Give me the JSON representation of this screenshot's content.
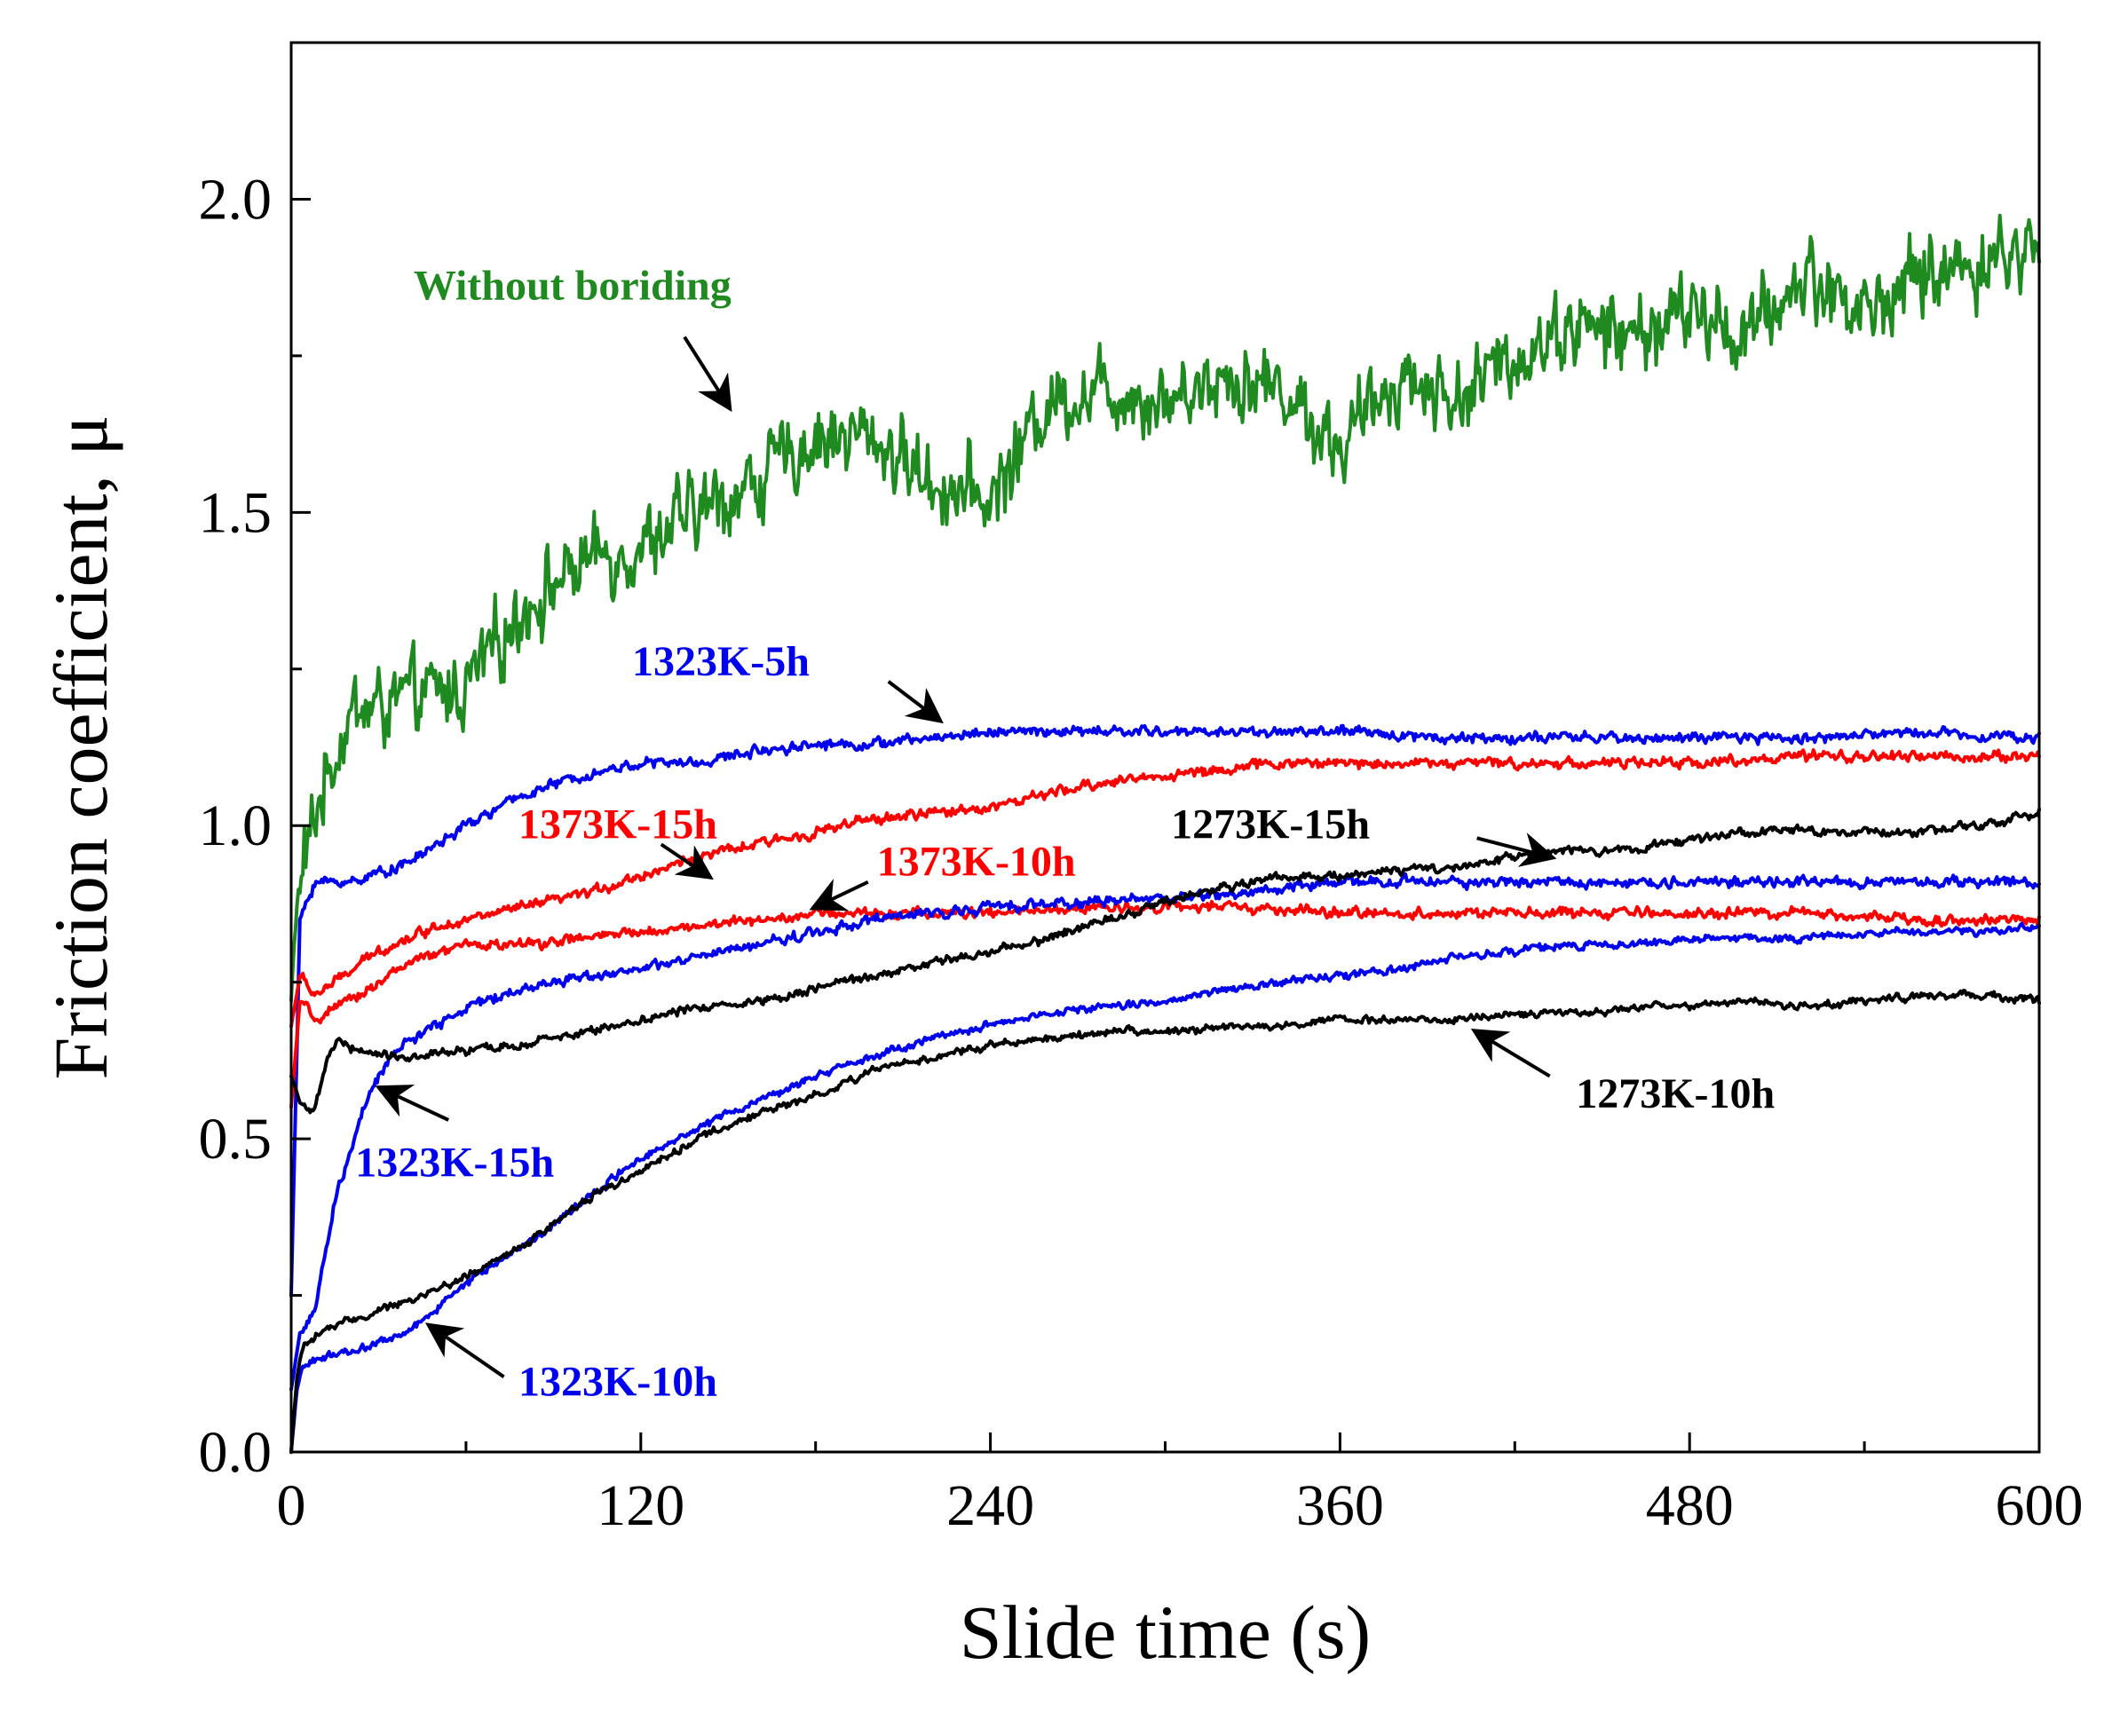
{
  "chart_data": {
    "type": "line",
    "title": "",
    "xlabel": "Slide time (s)",
    "ylabel": "Friction coefficient, μ",
    "xlim": [
      0,
      600
    ],
    "ylim": [
      0,
      2.25
    ],
    "x_ticks": [
      0,
      120,
      240,
      360,
      480,
      600
    ],
    "x_tick_labels": [
      "0",
      "120",
      "240",
      "360",
      "480",
      "600"
    ],
    "y_ticks": [
      0,
      0.5,
      1.0,
      1.5,
      2.0
    ],
    "y_tick_labels": [
      "0.0",
      "0.5",
      "1.0",
      "1.5",
      "2.0"
    ],
    "grid": false,
    "series": [
      {
        "name": "Without boriding",
        "color": "#1f8a1f",
        "noise": 0.09,
        "points": [
          [
            0,
            0.72
          ],
          [
            2,
            0.88
          ],
          [
            5,
            0.95
          ],
          [
            10,
            1.05
          ],
          [
            20,
            1.18
          ],
          [
            40,
            1.2
          ],
          [
            60,
            1.22
          ],
          [
            80,
            1.35
          ],
          [
            100,
            1.42
          ],
          [
            120,
            1.45
          ],
          [
            140,
            1.5
          ],
          [
            160,
            1.55
          ],
          [
            180,
            1.62
          ],
          [
            200,
            1.62
          ],
          [
            220,
            1.55
          ],
          [
            240,
            1.52
          ],
          [
            260,
            1.68
          ],
          [
            280,
            1.7
          ],
          [
            300,
            1.68
          ],
          [
            320,
            1.72
          ],
          [
            340,
            1.7
          ],
          [
            360,
            1.6
          ],
          [
            380,
            1.72
          ],
          [
            400,
            1.68
          ],
          [
            420,
            1.75
          ],
          [
            440,
            1.8
          ],
          [
            460,
            1.78
          ],
          [
            480,
            1.82
          ],
          [
            500,
            1.78
          ],
          [
            520,
            1.88
          ],
          [
            540,
            1.82
          ],
          [
            560,
            1.88
          ],
          [
            580,
            1.9
          ],
          [
            600,
            1.92
          ]
        ],
        "label_text": "Without boriding",
        "label_at": [
          42,
          1.84
        ],
        "label_anchor": "start",
        "arrow_from": [
          135,
          1.78
        ],
        "arrow_to": [
          150,
          1.67
        ]
      },
      {
        "name": "1323K-5h",
        "color": "#0000ee",
        "noise": 0.012,
        "points": [
          [
            0,
            0.25
          ],
          [
            3,
            0.85
          ],
          [
            8,
            0.91
          ],
          [
            20,
            0.91
          ],
          [
            40,
            0.94
          ],
          [
            60,
            1.0
          ],
          [
            80,
            1.05
          ],
          [
            100,
            1.08
          ],
          [
            120,
            1.1
          ],
          [
            140,
            1.1
          ],
          [
            160,
            1.12
          ],
          [
            180,
            1.13
          ],
          [
            200,
            1.13
          ],
          [
            220,
            1.14
          ],
          [
            240,
            1.15
          ],
          [
            280,
            1.15
          ],
          [
            320,
            1.15
          ],
          [
            360,
            1.15
          ],
          [
            400,
            1.14
          ],
          [
            440,
            1.14
          ],
          [
            480,
            1.14
          ],
          [
            520,
            1.14
          ],
          [
            560,
            1.15
          ],
          [
            600,
            1.14
          ]
        ],
        "label_text": "1323K-5h",
        "label_at": [
          117,
          1.24
        ],
        "label_anchor": "start",
        "arrow_from": [
          205,
          1.23
        ],
        "arrow_to": [
          222,
          1.17
        ]
      },
      {
        "name": "1373K-15h",
        "color": "#ff0000",
        "noise": 0.012,
        "points": [
          [
            0,
            0.68
          ],
          [
            3,
            0.76
          ],
          [
            8,
            0.73
          ],
          [
            15,
            0.75
          ],
          [
            30,
            0.8
          ],
          [
            50,
            0.84
          ],
          [
            60,
            0.85
          ],
          [
            80,
            0.87
          ],
          [
            100,
            0.89
          ],
          [
            120,
            0.92
          ],
          [
            140,
            0.95
          ],
          [
            160,
            0.97
          ],
          [
            180,
            0.99
          ],
          [
            200,
            1.01
          ],
          [
            220,
            1.02
          ],
          [
            240,
            1.03
          ],
          [
            260,
            1.05
          ],
          [
            280,
            1.07
          ],
          [
            300,
            1.08
          ],
          [
            320,
            1.09
          ],
          [
            340,
            1.1
          ],
          [
            360,
            1.1
          ],
          [
            400,
            1.1
          ],
          [
            440,
            1.1
          ],
          [
            480,
            1.1
          ],
          [
            520,
            1.11
          ],
          [
            560,
            1.11
          ],
          [
            600,
            1.11
          ]
        ],
        "label_text": "1373K-15h",
        "label_at": [
          78,
          0.98
        ],
        "label_anchor": "start",
        "arrow_from": [
          127,
          0.97
        ],
        "arrow_to": [
          143,
          0.92
        ]
      },
      {
        "name": "1373K-10h",
        "color": "#ff0000",
        "noise": 0.012,
        "points": [
          [
            0,
            0.55
          ],
          [
            3,
            0.72
          ],
          [
            8,
            0.69
          ],
          [
            20,
            0.72
          ],
          [
            40,
            0.78
          ],
          [
            60,
            0.81
          ],
          [
            80,
            0.81
          ],
          [
            100,
            0.82
          ],
          [
            120,
            0.83
          ],
          [
            140,
            0.84
          ],
          [
            160,
            0.85
          ],
          [
            180,
            0.86
          ],
          [
            200,
            0.86
          ],
          [
            240,
            0.86
          ],
          [
            280,
            0.87
          ],
          [
            320,
            0.87
          ],
          [
            360,
            0.86
          ],
          [
            400,
            0.86
          ],
          [
            440,
            0.86
          ],
          [
            480,
            0.86
          ],
          [
            520,
            0.86
          ],
          [
            560,
            0.85
          ],
          [
            600,
            0.85
          ]
        ],
        "label_text": "1373K-10h",
        "label_at": [
          201,
          0.92
        ],
        "label_anchor": "start",
        "arrow_from": [
          198,
          0.91
        ],
        "arrow_to": [
          180,
          0.87
        ]
      },
      {
        "name": "1323K-15h",
        "color": "#0000ee",
        "noise": 0.012,
        "points": [
          [
            0,
            0.1
          ],
          [
            3,
            0.19
          ],
          [
            8,
            0.22
          ],
          [
            15,
            0.4
          ],
          [
            25,
            0.55
          ],
          [
            35,
            0.64
          ],
          [
            60,
            0.71
          ],
          [
            80,
            0.74
          ],
          [
            100,
            0.76
          ],
          [
            120,
            0.77
          ],
          [
            140,
            0.79
          ],
          [
            160,
            0.81
          ],
          [
            180,
            0.83
          ],
          [
            200,
            0.85
          ],
          [
            220,
            0.86
          ],
          [
            240,
            0.87
          ],
          [
            280,
            0.88
          ],
          [
            320,
            0.89
          ],
          [
            360,
            0.91
          ],
          [
            400,
            0.91
          ],
          [
            440,
            0.91
          ],
          [
            480,
            0.91
          ],
          [
            520,
            0.91
          ],
          [
            560,
            0.91
          ],
          [
            600,
            0.91
          ]
        ],
        "label_text": "1323K-15h",
        "label_at": [
          22,
          0.44
        ],
        "label_anchor": "start",
        "arrow_from": [
          54,
          0.53
        ],
        "arrow_to": [
          31,
          0.58
        ]
      },
      {
        "name": "1273K-15h",
        "color": "#000000",
        "noise": 0.01,
        "points": [
          [
            0,
            0.6
          ],
          [
            3,
            0.56
          ],
          [
            8,
            0.54
          ],
          [
            12,
            0.62
          ],
          [
            16,
            0.66
          ],
          [
            22,
            0.64
          ],
          [
            40,
            0.63
          ],
          [
            60,
            0.64
          ],
          [
            80,
            0.65
          ],
          [
            100,
            0.67
          ],
          [
            120,
            0.69
          ],
          [
            140,
            0.71
          ],
          [
            160,
            0.72
          ],
          [
            180,
            0.74
          ],
          [
            200,
            0.76
          ],
          [
            220,
            0.78
          ],
          [
            240,
            0.8
          ],
          [
            260,
            0.82
          ],
          [
            280,
            0.85
          ],
          [
            300,
            0.88
          ],
          [
            320,
            0.9
          ],
          [
            340,
            0.92
          ],
          [
            360,
            0.92
          ],
          [
            380,
            0.93
          ],
          [
            400,
            0.93
          ],
          [
            420,
            0.95
          ],
          [
            440,
            0.96
          ],
          [
            460,
            0.96
          ],
          [
            480,
            0.98
          ],
          [
            500,
            0.99
          ],
          [
            520,
            0.99
          ],
          [
            540,
            0.99
          ],
          [
            560,
            0.99
          ],
          [
            580,
            1.0
          ],
          [
            600,
            1.02
          ]
        ],
        "label_text": "1273K-15h",
        "label_at": [
          302,
          0.98
        ],
        "label_anchor": "start",
        "arrow_from": [
          407,
          0.98
        ],
        "arrow_to": [
          432,
          0.95
        ]
      },
      {
        "name": "1323K-10h",
        "color": "#0000ee",
        "noise": 0.009,
        "points": [
          [
            0,
            0.0
          ],
          [
            2,
            0.1
          ],
          [
            4,
            0.14
          ],
          [
            10,
            0.15
          ],
          [
            20,
            0.16
          ],
          [
            40,
            0.19
          ],
          [
            60,
            0.27
          ],
          [
            80,
            0.33
          ],
          [
            100,
            0.4
          ],
          [
            120,
            0.47
          ],
          [
            140,
            0.52
          ],
          [
            160,
            0.56
          ],
          [
            180,
            0.6
          ],
          [
            200,
            0.63
          ],
          [
            220,
            0.66
          ],
          [
            240,
            0.68
          ],
          [
            260,
            0.7
          ],
          [
            280,
            0.71
          ],
          [
            300,
            0.72
          ],
          [
            320,
            0.74
          ],
          [
            340,
            0.75
          ],
          [
            360,
            0.76
          ],
          [
            380,
            0.77
          ],
          [
            400,
            0.79
          ],
          [
            420,
            0.8
          ],
          [
            440,
            0.81
          ],
          [
            460,
            0.81
          ],
          [
            480,
            0.82
          ],
          [
            500,
            0.82
          ],
          [
            520,
            0.82
          ],
          [
            540,
            0.83
          ],
          [
            560,
            0.83
          ],
          [
            580,
            0.83
          ],
          [
            600,
            0.84
          ]
        ],
        "label_text": "1323K-10h",
        "label_at": [
          78,
          0.09
        ],
        "label_anchor": "start",
        "arrow_from": [
          73,
          0.12
        ],
        "arrow_to": [
          48,
          0.2
        ]
      },
      {
        "name": "1273K-10h",
        "color": "#000000",
        "noise": 0.009,
        "points": [
          [
            0,
            0.0
          ],
          [
            2,
            0.12
          ],
          [
            4,
            0.17
          ],
          [
            10,
            0.19
          ],
          [
            20,
            0.21
          ],
          [
            40,
            0.24
          ],
          [
            60,
            0.28
          ],
          [
            80,
            0.33
          ],
          [
            100,
            0.4
          ],
          [
            120,
            0.45
          ],
          [
            140,
            0.5
          ],
          [
            160,
            0.54
          ],
          [
            180,
            0.57
          ],
          [
            200,
            0.61
          ],
          [
            220,
            0.63
          ],
          [
            240,
            0.65
          ],
          [
            260,
            0.66
          ],
          [
            280,
            0.67
          ],
          [
            300,
            0.67
          ],
          [
            320,
            0.68
          ],
          [
            340,
            0.68
          ],
          [
            360,
            0.69
          ],
          [
            380,
            0.69
          ],
          [
            400,
            0.69
          ],
          [
            420,
            0.7
          ],
          [
            440,
            0.7
          ],
          [
            460,
            0.71
          ],
          [
            480,
            0.71
          ],
          [
            500,
            0.72
          ],
          [
            520,
            0.71
          ],
          [
            540,
            0.72
          ],
          [
            560,
            0.73
          ],
          [
            580,
            0.73
          ],
          [
            600,
            0.72
          ]
        ],
        "label_text": "1273K-10h",
        "label_at": [
          441,
          0.55
        ],
        "label_anchor": "start",
        "arrow_from": [
          432,
          0.6
        ],
        "arrow_to": [
          407,
          0.67
        ]
      }
    ]
  }
}
